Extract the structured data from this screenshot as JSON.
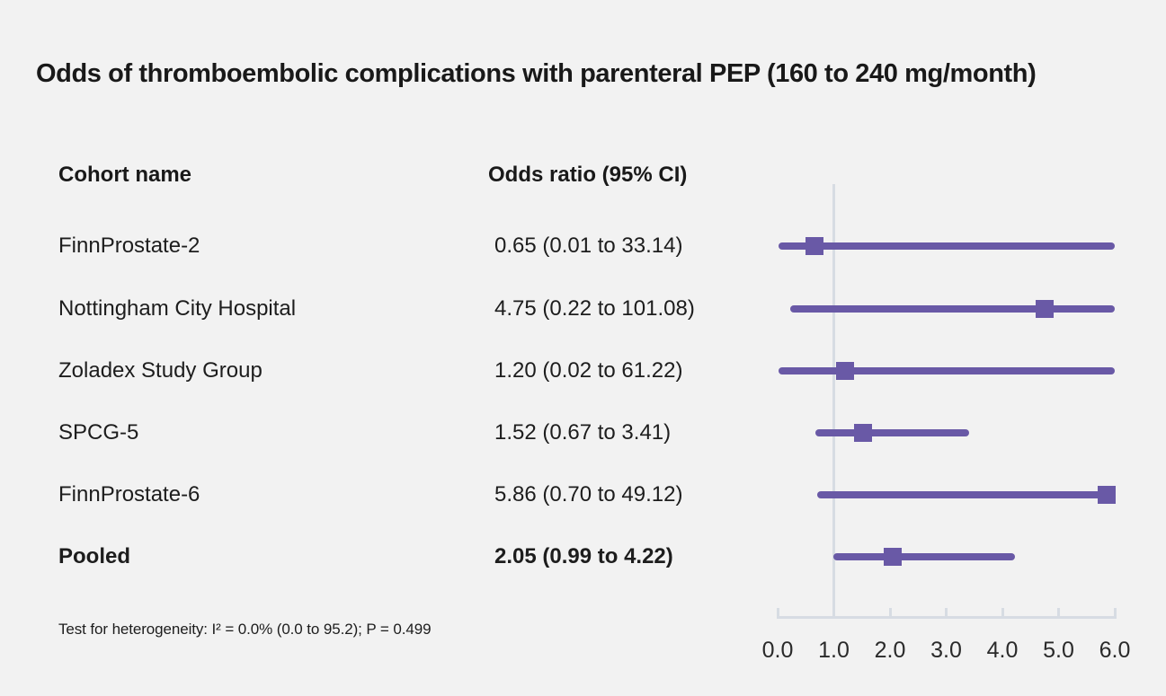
{
  "title": "Odds of thromboembolic complications with parenteral PEP (160 to 240 mg/month)",
  "columns": {
    "cohort": "Cohort name",
    "odds": "Odds ratio (95% CI)"
  },
  "footnote": "Test for heterogeneity: I² = 0.0% (0.0 to 95.2); P = 0.499",
  "colors": {
    "marker": "#6959a6",
    "grid": "#d7dce3",
    "background": "#f2f2f2",
    "text": "#1d1d1d"
  },
  "chart_data": {
    "type": "forest",
    "title": "Odds of thromboembolic complications with parenteral PEP (160 to 240 mg/month)",
    "x_min": 0,
    "x_max": 6,
    "reference_line": 1.0,
    "tick_labels": [
      "0.0",
      "1.0",
      "2.0",
      "3.0",
      "4.0",
      "5.0",
      "6.0"
    ],
    "grid": false,
    "legend_position": "none",
    "studies": [
      {
        "name": "FinnProstate-2",
        "odds_ratio": 0.65,
        "ci_low": 0.01,
        "ci_high": 33.14,
        "label": "0.65 (0.01 to 33.14)",
        "pooled": false
      },
      {
        "name": "Nottingham City Hospital",
        "odds_ratio": 4.75,
        "ci_low": 0.22,
        "ci_high": 101.08,
        "label": "4.75 (0.22 to 101.08)",
        "pooled": false
      },
      {
        "name": "Zoladex Study Group",
        "odds_ratio": 1.2,
        "ci_low": 0.02,
        "ci_high": 61.22,
        "label": "1.20 (0.02 to 61.22)",
        "pooled": false
      },
      {
        "name": "SPCG-5",
        "odds_ratio": 1.52,
        "ci_low": 0.67,
        "ci_high": 3.41,
        "label": "1.52 (0.67 to 3.41)",
        "pooled": false
      },
      {
        "name": "FinnProstate-6",
        "odds_ratio": 5.86,
        "ci_low": 0.7,
        "ci_high": 49.12,
        "label": "5.86 (0.70 to 49.12)",
        "pooled": false
      },
      {
        "name": "Pooled",
        "odds_ratio": 2.05,
        "ci_low": 0.99,
        "ci_high": 4.22,
        "label": "2.05 (0.99 to 4.22)",
        "pooled": true
      }
    ]
  }
}
